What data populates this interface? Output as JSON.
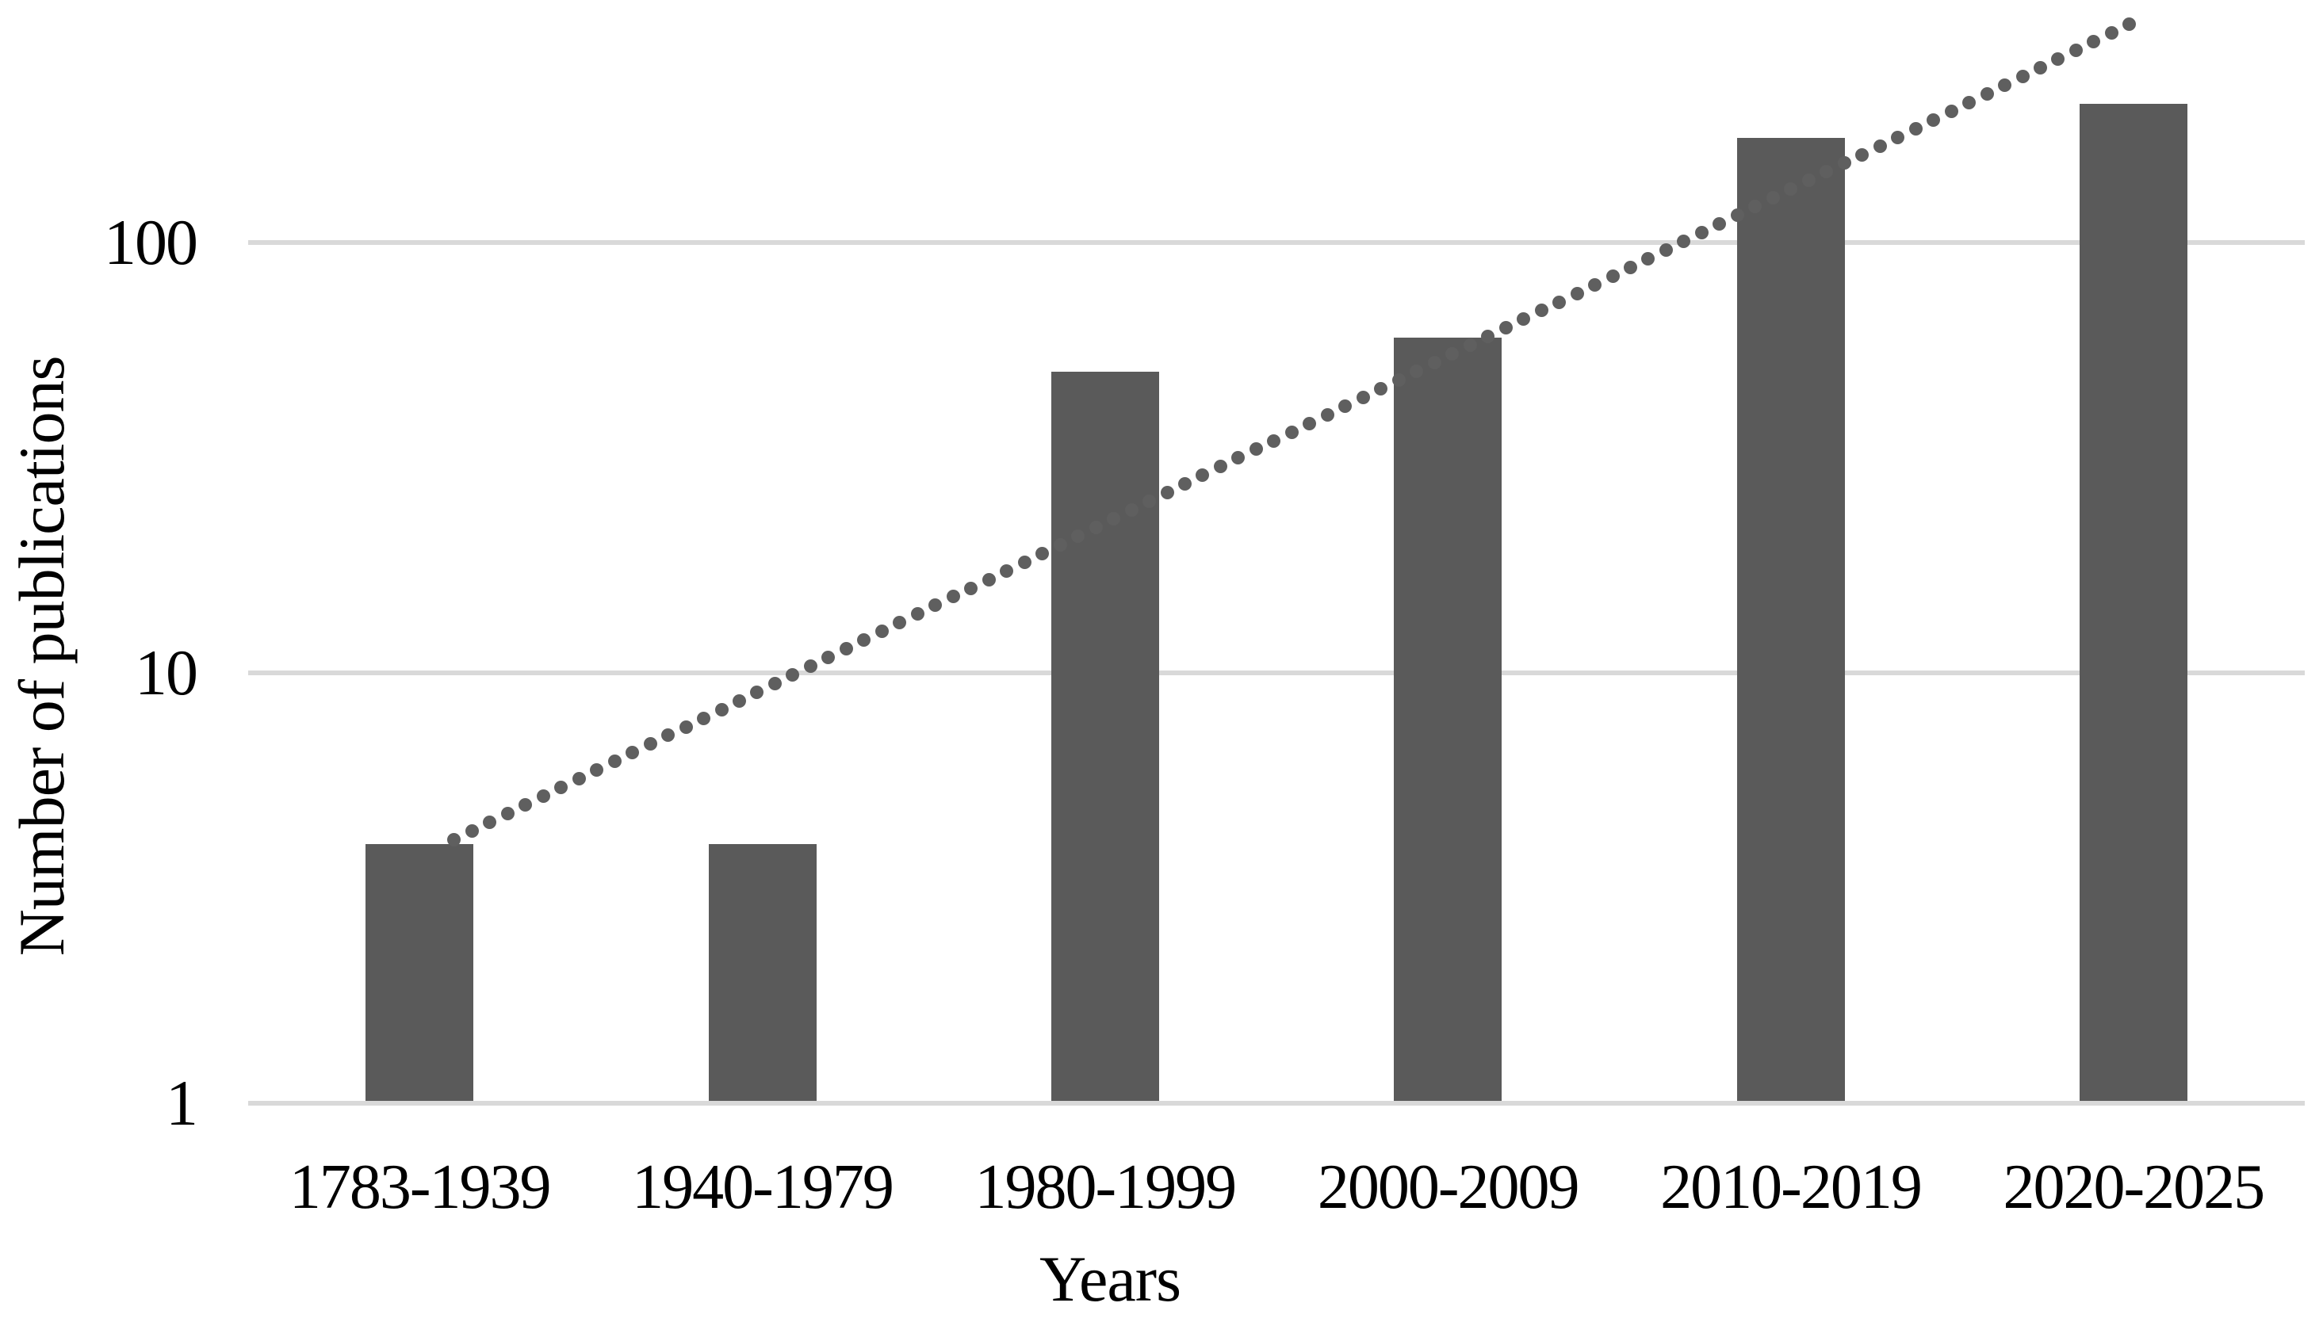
{
  "chart_data": {
    "type": "bar",
    "scale": "log10",
    "title": "",
    "xlabel": "Years",
    "ylabel": "Number of publications",
    "categories": [
      "1783-1939",
      "1940-1979",
      "1980-1999",
      "2000-2009",
      "2010-2019",
      "2020-2025"
    ],
    "values": [
      4,
      4,
      50,
      60,
      175,
      210
    ],
    "yticks": [
      1,
      10,
      100
    ],
    "ylim": [
      1,
      366
    ],
    "grid": "horizontal",
    "legend": "none",
    "colors": {
      "bar": "#5a5a5a",
      "trendline": "#5f5f5f",
      "gridline": "#d9d9d9",
      "text": "#000000",
      "background": "#ffffff"
    },
    "trendline": {
      "style": "dotted",
      "shape": "round-dots",
      "start": {
        "x_category": 0.601,
        "value": 4.1
      },
      "end": {
        "x_category": 5.492,
        "value": 322
      }
    }
  }
}
